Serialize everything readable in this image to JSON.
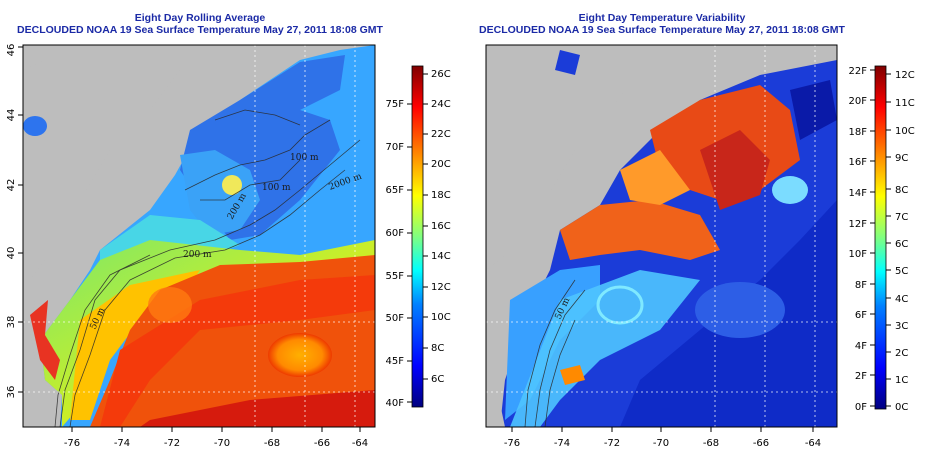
{
  "left_panel": {
    "title": "Eight Day Rolling Average",
    "subtitle": "DECLOUDED NOAA 19 Sea Surface Temperature May 27, 2011 18:08 GMT",
    "x_ticks": [
      "-76",
      "-74",
      "-72",
      "-70",
      "-68",
      "-66",
      "-64"
    ],
    "y_ticks": [
      "36",
      "38",
      "40",
      "42",
      "44",
      "46"
    ],
    "colorbar_c": [
      "6C",
      "8C",
      "10C",
      "12C",
      "14C",
      "16C",
      "18C",
      "20C",
      "22C",
      "24C",
      "26C"
    ],
    "colorbar_f": [
      "40F",
      "45F",
      "50F",
      "55F",
      "60F",
      "65F",
      "70F",
      "75F"
    ],
    "contour_labels": [
      "100 m",
      "100 m",
      "200 m",
      "2000 m",
      "200 m",
      "50 m"
    ]
  },
  "right_panel": {
    "title": "Eight Day Temperature Variability",
    "subtitle": "DECLOUDED NOAA 19 Sea Surface Temperature May 27, 2011 18:08 GMT",
    "x_ticks": [
      "-76",
      "-74",
      "-72",
      "-70",
      "-68",
      "-66",
      "-64"
    ],
    "colorbar_c": [
      "0C",
      "1C",
      "2C",
      "3C",
      "4C",
      "5C",
      "6C",
      "7C",
      "8C",
      "9C",
      "10C",
      "11C",
      "12C"
    ],
    "colorbar_f": [
      "0F",
      "2F",
      "4F",
      "6F",
      "8F",
      "10F",
      "12F",
      "14F",
      "16F",
      "18F",
      "20F",
      "22F"
    ],
    "contour_labels": [
      "50 m"
    ]
  },
  "colors": {
    "title": "#1b2aa6",
    "land": "#bdbdbd",
    "colormap": [
      "#00007f",
      "#0000ff",
      "#0080ff",
      "#00ffff",
      "#80ff80",
      "#ffff00",
      "#ff8000",
      "#ff0000",
      "#7f0000"
    ]
  }
}
